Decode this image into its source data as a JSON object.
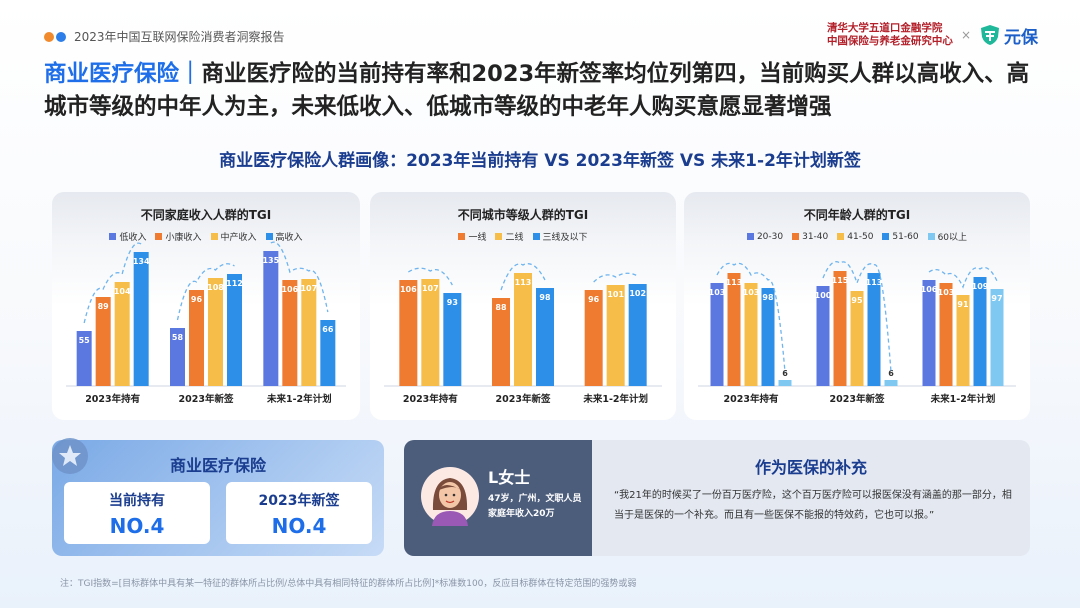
{
  "header": {
    "report_title": "2023年中国互联网保险消费者洞察报告",
    "institution_line1": "清华大学五道口金融学院",
    "institution_line2": "中国保险与养老金研究中心",
    "times_sign": "×",
    "brand_name": "元保"
  },
  "headline": {
    "highlight": "商业医疗保险｜",
    "text": "商业医疗险的当前持有率和2023年新签率均位列第四，当前购买人群以高收入、高城市等级的中年人为主，未来低收入、低城市等级的中老年人购买意愿显著增强"
  },
  "subtitle": "商业医疗保险人群画像：2023年当前持有 VS 2023年新签 VS 未来1-2年计划新签",
  "chart_data": [
    {
      "type": "bar",
      "title": "不同家庭收入人群的TGI",
      "categories": [
        "2023年持有",
        "2023年新签",
        "未来1-2年计划"
      ],
      "series": [
        {
          "name": "低收入",
          "color": "#5b78e0",
          "values": [
            55,
            58,
            135
          ]
        },
        {
          "name": "小康收入",
          "color": "#ee7b2f",
          "values": [
            89,
            96,
            106
          ]
        },
        {
          "name": "中产收入",
          "color": "#f6bd48",
          "values": [
            104,
            108,
            107
          ]
        },
        {
          "name": "高收入",
          "color": "#2d8fe8",
          "values": [
            134,
            112,
            66
          ]
        }
      ],
      "ylim": [
        0,
        150
      ]
    },
    {
      "type": "bar",
      "title": "不同城市等级人群的TGI",
      "categories": [
        "2023年持有",
        "2023年新签",
        "未来1-2年计划"
      ],
      "series": [
        {
          "name": "一线",
          "color": "#ee7b2f",
          "values": [
            106,
            88,
            96
          ]
        },
        {
          "name": "二线",
          "color": "#f6bd48",
          "values": [
            107,
            113,
            101
          ]
        },
        {
          "name": "三线及以下",
          "color": "#2d8fe8",
          "values": [
            93,
            98,
            102
          ]
        }
      ],
      "ylim": [
        0,
        150
      ]
    },
    {
      "type": "bar",
      "title": "不同年龄人群的TGI",
      "categories": [
        "2023年持有",
        "2023年新签",
        "未来1-2年计划"
      ],
      "series": [
        {
          "name": "20-30",
          "color": "#5b78e0",
          "values": [
            103,
            100,
            106
          ]
        },
        {
          "name": "31-40",
          "color": "#ee7b2f",
          "values": [
            113,
            115,
            103
          ]
        },
        {
          "name": "41-50",
          "color": "#f6bd48",
          "values": [
            103,
            95,
            91
          ]
        },
        {
          "name": "51-60",
          "color": "#2d8fe8",
          "values": [
            98,
            113,
            109
          ]
        },
        {
          "name": "60以上",
          "color": "#7ec8f2",
          "values": [
            6,
            6,
            97
          ]
        }
      ],
      "ylim": [
        0,
        150
      ]
    }
  ],
  "rank_card": {
    "title": "商业医疗保险",
    "items": [
      {
        "label": "当前持有",
        "value": "NO.4"
      },
      {
        "label": "2023年新签",
        "value": "NO.4"
      }
    ]
  },
  "quote_card": {
    "name": "L女士",
    "desc_line1": "47岁，广州，文职人员",
    "desc_line2": "家庭年收入20万",
    "title": "作为医保的补充",
    "quote": "“我21年的时候买了一份百万医疗险，这个百万医疗险可以报医保没有涵盖的那一部分，相当于是医保的一个补充。而且有一些医保不能报的特效药，它也可以报。”"
  },
  "footnote": "注：TGI指数=[目标群体中具有某一特征的群体所占比例/总体中具有相同特征的群体所占比例]*标准数100，反应目标群体在特定范围的强势或弱",
  "colors": {
    "accent": "#1d6ee8",
    "navy": "#1b3d8f",
    "brand": "#1d5fc9",
    "uni_red": "#b3202a"
  }
}
